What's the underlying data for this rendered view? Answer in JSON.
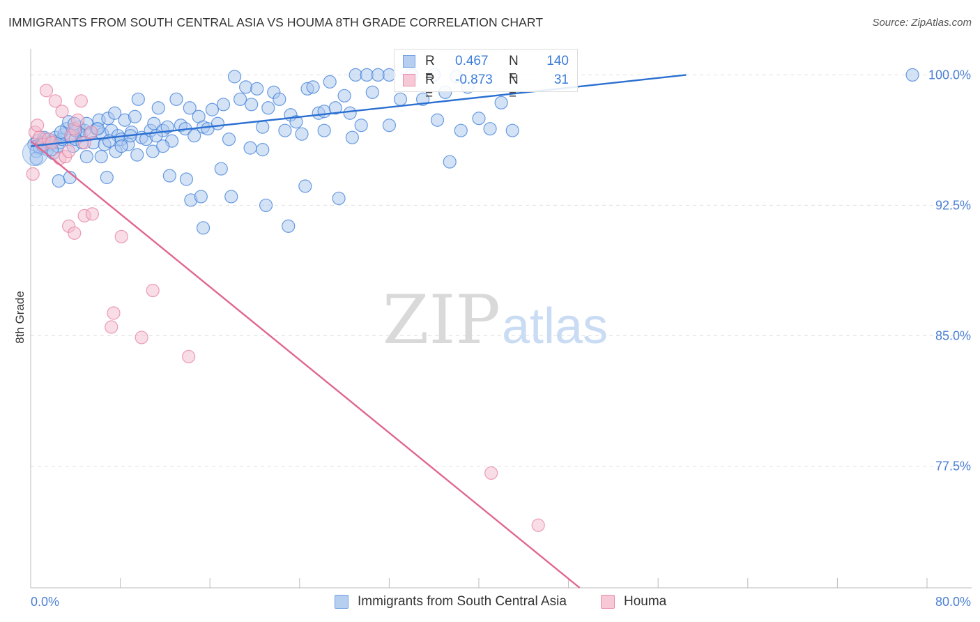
{
  "title": "IMMIGRANTS FROM SOUTH CENTRAL ASIA VS HOUMA 8TH GRADE CORRELATION CHART",
  "source": "Source: ZipAtlas.com",
  "watermark": {
    "zip": "ZIP",
    "atlas": "atlas"
  },
  "colors": {
    "blue": "#3b7dd8",
    "blue_fill": "#a9c6ee",
    "blue_line": "#2a6fd1",
    "pink": "#e67fa0",
    "pink_fill": "#f4bccd",
    "pink_line": "#e0678f",
    "axis_label": "#4a7fd4",
    "grid": "#e0e0e0"
  },
  "legend_top": [
    {
      "r_label": "R =",
      "r_value": "0.467",
      "n_label": "N =",
      "n_value": "140",
      "color": "blue"
    },
    {
      "r_label": "R =",
      "r_value": "-0.873",
      "n_label": "N =",
      "n_value": "31",
      "color": "pink"
    }
  ],
  "legend_bottom": [
    {
      "label": "Immigrants from South Central Asia",
      "color": "blue"
    },
    {
      "label": "Houma",
      "color": "pink"
    }
  ],
  "chart_data": {
    "type": "scatter",
    "title": "IMMIGRANTS FROM SOUTH CENTRAL ASIA VS HOUMA 8TH GRADE CORRELATION CHART",
    "xlabel": "",
    "ylabel": "8th Grade",
    "xlim": [
      0,
      80
    ],
    "ylim": [
      70.5,
      101.5
    ],
    "x_tick_labels": [
      "0.0%",
      "80.0%"
    ],
    "y_ticks": [
      100.0,
      92.5,
      85.0,
      77.5
    ],
    "y_tick_labels": [
      "100.0%",
      "92.5%",
      "85.0%",
      "77.5%"
    ],
    "grid": true,
    "legend_position": "top-center",
    "series": [
      {
        "name": "Immigrants from South Central Asia",
        "color": "blue",
        "trend": {
          "x": [
            0,
            58.5
          ],
          "y": [
            95.9,
            100.0
          ]
        },
        "points": [
          [
            0.3,
            96.0
          ],
          [
            0.5,
            95.6
          ],
          [
            0.6,
            96.2
          ],
          [
            0.8,
            95.8
          ],
          [
            1.0,
            96.1
          ],
          [
            1.1,
            95.9
          ],
          [
            1.3,
            96.3
          ],
          [
            1.5,
            95.7
          ],
          [
            1.7,
            96.0
          ],
          [
            1.9,
            96.2
          ],
          [
            2.0,
            95.5
          ],
          [
            2.2,
            96.4
          ],
          [
            2.4,
            95.9
          ],
          [
            2.6,
            96.1
          ],
          [
            2.8,
            96.3
          ],
          [
            3.0,
            96.6
          ],
          [
            3.2,
            96.9
          ],
          [
            3.4,
            97.3
          ],
          [
            3.6,
            96.4
          ],
          [
            3.8,
            95.9
          ],
          [
            4.0,
            96.3
          ],
          [
            4.3,
            97.0
          ],
          [
            4.5,
            96.5
          ],
          [
            4.8,
            96.8
          ],
          [
            5.0,
            97.2
          ],
          [
            5.3,
            96.6
          ],
          [
            5.6,
            96.1
          ],
          [
            5.9,
            96.9
          ],
          [
            6.1,
            97.4
          ],
          [
            6.4,
            96.6
          ],
          [
            6.6,
            96.0
          ],
          [
            6.9,
            97.5
          ],
          [
            7.2,
            96.8
          ],
          [
            7.5,
            97.8
          ],
          [
            7.8,
            96.5
          ],
          [
            8.1,
            96.3
          ],
          [
            8.4,
            97.4
          ],
          [
            8.7,
            96.0
          ],
          [
            9.0,
            96.7
          ],
          [
            9.3,
            97.6
          ],
          [
            9.6,
            98.6
          ],
          [
            9.9,
            96.4
          ],
          [
            10.3,
            96.3
          ],
          [
            10.7,
            96.8
          ],
          [
            11.0,
            97.2
          ],
          [
            11.4,
            98.1
          ],
          [
            11.8,
            96.8
          ],
          [
            12.2,
            97.0
          ],
          [
            12.6,
            96.2
          ],
          [
            13.0,
            98.6
          ],
          [
            13.4,
            97.1
          ],
          [
            13.8,
            96.9
          ],
          [
            14.2,
            98.1
          ],
          [
            14.6,
            96.5
          ],
          [
            15.0,
            97.6
          ],
          [
            15.4,
            97.0
          ],
          [
            15.8,
            96.9
          ],
          [
            16.2,
            98.0
          ],
          [
            16.7,
            97.2
          ],
          [
            17.2,
            98.3
          ],
          [
            17.7,
            96.3
          ],
          [
            18.2,
            99.9
          ],
          [
            18.7,
            98.6
          ],
          [
            19.2,
            99.3
          ],
          [
            19.7,
            98.3
          ],
          [
            20.2,
            99.2
          ],
          [
            20.7,
            97.0
          ],
          [
            21.2,
            98.1
          ],
          [
            21.7,
            99.0
          ],
          [
            22.2,
            98.6
          ],
          [
            22.7,
            96.8
          ],
          [
            23.2,
            97.7
          ],
          [
            23.7,
            97.3
          ],
          [
            24.2,
            96.6
          ],
          [
            24.7,
            99.2
          ],
          [
            25.2,
            99.3
          ],
          [
            25.7,
            97.8
          ],
          [
            26.2,
            97.9
          ],
          [
            26.7,
            99.6
          ],
          [
            27.2,
            98.1
          ],
          [
            28.0,
            98.8
          ],
          [
            28.5,
            97.8
          ],
          [
            29.0,
            100.0
          ],
          [
            29.5,
            97.1
          ],
          [
            30.0,
            100.0
          ],
          [
            30.5,
            99.0
          ],
          [
            31.0,
            100.0
          ],
          [
            32.0,
            100.0
          ],
          [
            33.0,
            98.6
          ],
          [
            34.0,
            100.0
          ],
          [
            35.0,
            98.6
          ],
          [
            36.0,
            100.0
          ],
          [
            37.0,
            99.0
          ],
          [
            38.0,
            99.9
          ],
          [
            39.0,
            99.3
          ],
          [
            40.0,
            97.5
          ],
          [
            41.0,
            96.9
          ],
          [
            42.0,
            98.4
          ],
          [
            43.0,
            96.8
          ],
          [
            78.7,
            100.0
          ],
          [
            2.5,
            93.9
          ],
          [
            3.5,
            94.1
          ],
          [
            4.0,
            96.8
          ],
          [
            5.0,
            95.3
          ],
          [
            6.3,
            95.3
          ],
          [
            6.8,
            94.1
          ],
          [
            7.6,
            95.6
          ],
          [
            8.1,
            95.9
          ],
          [
            9.5,
            95.4
          ],
          [
            10.9,
            95.6
          ],
          [
            11.8,
            95.9
          ],
          [
            12.4,
            94.2
          ],
          [
            13.9,
            94.0
          ],
          [
            14.3,
            92.8
          ],
          [
            15.2,
            93.0
          ],
          [
            15.4,
            91.2
          ],
          [
            17.0,
            94.6
          ],
          [
            17.9,
            93.0
          ],
          [
            19.6,
            95.8
          ],
          [
            20.7,
            95.7
          ],
          [
            21.0,
            92.5
          ],
          [
            23.0,
            91.3
          ],
          [
            24.5,
            93.6
          ],
          [
            26.2,
            96.8
          ],
          [
            27.5,
            92.9
          ],
          [
            28.7,
            96.4
          ],
          [
            32.0,
            97.1
          ],
          [
            37.4,
            95.0
          ],
          [
            38.4,
            96.8
          ],
          [
            36.3,
            97.4
          ],
          [
            0.5,
            95.2
          ],
          [
            1.2,
            96.4
          ],
          [
            1.9,
            95.7
          ],
          [
            2.7,
            96.7
          ],
          [
            3.9,
            97.2
          ],
          [
            4.6,
            96.1
          ],
          [
            6.0,
            96.9
          ],
          [
            7.0,
            96.2
          ],
          [
            8.9,
            96.5
          ],
          [
            11.2,
            96.5
          ]
        ]
      },
      {
        "name": "Houma",
        "color": "pink",
        "trend": {
          "x": [
            0,
            49
          ],
          "y": [
            96.2,
            70.5
          ]
        },
        "points": [
          [
            0.2,
            94.3
          ],
          [
            0.4,
            96.7
          ],
          [
            0.6,
            97.1
          ],
          [
            0.8,
            96.4
          ],
          [
            1.1,
            96.0
          ],
          [
            1.4,
            99.1
          ],
          [
            1.6,
            96.3
          ],
          [
            1.9,
            96.1
          ],
          [
            2.2,
            98.5
          ],
          [
            2.6,
            95.2
          ],
          [
            2.8,
            97.9
          ],
          [
            3.1,
            95.3
          ],
          [
            3.4,
            95.6
          ],
          [
            3.6,
            96.5
          ],
          [
            3.9,
            96.9
          ],
          [
            4.2,
            97.4
          ],
          [
            4.5,
            98.5
          ],
          [
            4.8,
            96.1
          ],
          [
            5.4,
            96.7
          ],
          [
            3.4,
            91.3
          ],
          [
            3.9,
            90.9
          ],
          [
            4.8,
            91.9
          ],
          [
            5.5,
            92.0
          ],
          [
            8.1,
            90.7
          ],
          [
            7.2,
            85.5
          ],
          [
            7.4,
            86.3
          ],
          [
            9.9,
            84.9
          ],
          [
            10.9,
            87.6
          ],
          [
            14.1,
            83.8
          ],
          [
            41.1,
            77.1
          ],
          [
            45.3,
            74.1
          ]
        ]
      }
    ]
  }
}
